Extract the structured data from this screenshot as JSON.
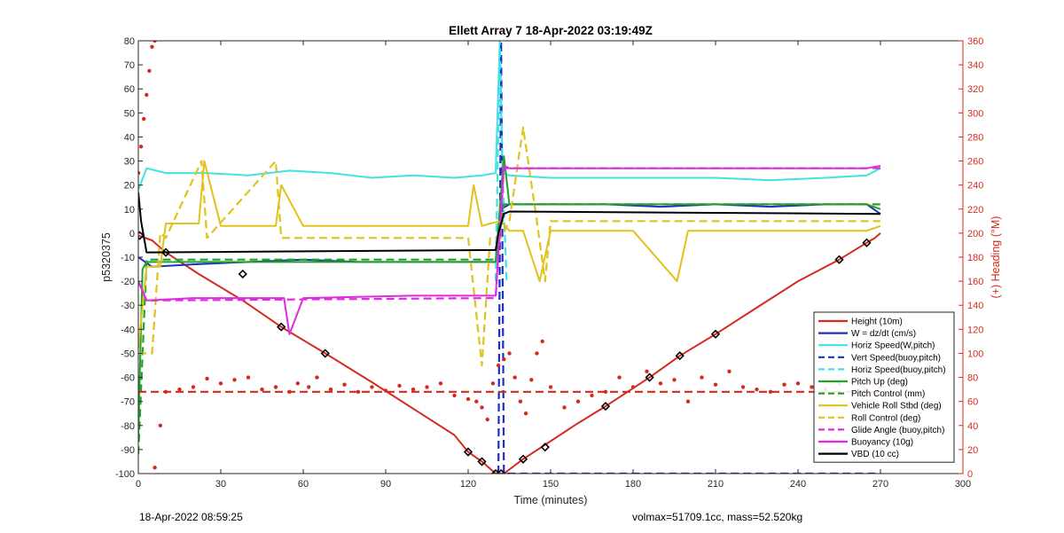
{
  "chart_data": {
    "type": "line",
    "title": "Ellett Array 7 18-Apr-2022 03:19:49Z",
    "xlabel": "Time (minutes)",
    "ylabel": "p5320375",
    "y2label": "(+) Heading (°M)",
    "xlim": [
      0,
      300
    ],
    "ylim": [
      -100,
      80
    ],
    "y2lim": [
      0,
      360
    ],
    "xticks": [
      "0",
      "30",
      "60",
      "90",
      "120",
      "150",
      "180",
      "210",
      "240",
      "270",
      "300"
    ],
    "yticks": [
      "80",
      "70",
      "60",
      "50",
      "40",
      "30",
      "20",
      "10",
      "0",
      "-10",
      "-20",
      "-30",
      "-40",
      "-50",
      "-60",
      "-70",
      "-80",
      "-90",
      "-100"
    ],
    "y2ticks": [
      "360",
      "340",
      "320",
      "300",
      "280",
      "260",
      "240",
      "220",
      "200",
      "180",
      "160",
      "140",
      "120",
      "100",
      "80",
      "60",
      "40",
      "20",
      "0"
    ],
    "grid": false,
    "legend_position": "bottom-right",
    "colors": {
      "height": "#d62a1e",
      "w": "#1f2fc2",
      "horiz": "#3ee3e3",
      "vert_buoy": "#1f2fc2",
      "horiz_buoy": "#3ee3e3",
      "pitch_up": "#22a02a",
      "pitch_ctrl": "#22a02a",
      "roll": "#e0c21a",
      "roll_ctrl": "#e0c21a",
      "glide": "#e02ae0",
      "buoyancy": "#e02ae0",
      "vbd": "#000000",
      "heading": "#d62a1e",
      "axis_right": "#d62a1e"
    },
    "series": [
      {
        "name": "Height (10m)",
        "style": "solid",
        "color": "height",
        "x": [
          0,
          5,
          10,
          22,
          38,
          52,
          68,
          85,
          100,
          115,
          120,
          125,
          130,
          131.5,
          133,
          140,
          148,
          160,
          170,
          186,
          197,
          210,
          225,
          240,
          255,
          265,
          268,
          270
        ],
        "y": [
          -1,
          -3,
          -8,
          -17,
          -28,
          -39,
          -50,
          -62,
          -73,
          -84,
          -91,
          -95,
          -100,
          -100,
          -100,
          -94,
          -88,
          -79,
          -72,
          -60,
          -51,
          -42,
          -31,
          -20,
          -11,
          -4,
          -2,
          0
        ]
      },
      {
        "name": "W = dz/dt (cm/s)",
        "style": "solid",
        "color": "w",
        "x": [
          0,
          5,
          20,
          40,
          60,
          80,
          100,
          120,
          130,
          132,
          135,
          150,
          170,
          190,
          210,
          230,
          250,
          265,
          270
        ],
        "y": [
          -10,
          -14,
          -13,
          -12,
          -11,
          -12,
          -12,
          -12,
          -12,
          10,
          12,
          12,
          12,
          11,
          12,
          11,
          12,
          12,
          8
        ]
      },
      {
        "name": "Horiz Speed(W,pitch)",
        "style": "solid",
        "color": "horiz",
        "x": [
          0,
          3,
          10,
          25,
          40,
          55,
          70,
          85,
          100,
          115,
          125,
          130,
          131.5,
          132.5,
          135,
          150,
          170,
          190,
          210,
          230,
          250,
          265,
          270
        ],
        "y": [
          18,
          27,
          25,
          25,
          24,
          26,
          25,
          23,
          24,
          23,
          24,
          25,
          80,
          25,
          24,
          23,
          23,
          23,
          23,
          22,
          23,
          24,
          27
        ]
      },
      {
        "name": "Vert Speed(buoy,pitch)",
        "style": "dash",
        "color": "vert_buoy",
        "x": [
          131,
          132,
          132.3,
          133,
          270
        ],
        "y": [
          -100,
          80,
          25,
          -100,
          -100
        ]
      },
      {
        "name": "Horiz Speed(buoy,pitch)",
        "style": "dash",
        "color": "horiz_buoy",
        "x": [
          130,
          131.5,
          132.5,
          134
        ],
        "y": [
          -20,
          80,
          25,
          -20
        ]
      },
      {
        "name": "Pitch Up (deg)",
        "style": "solid",
        "color": "pitch_up",
        "x": [
          0,
          0.5,
          1.5,
          3,
          10,
          40,
          80,
          120,
          130,
          133,
          135,
          150,
          190,
          230,
          265,
          270
        ],
        "y": [
          -85,
          -60,
          -15,
          -12,
          -12,
          -12,
          -12,
          -12,
          -12,
          32,
          12,
          12,
          12,
          12,
          12,
          10
        ]
      },
      {
        "name": "Pitch Control (mm)",
        "style": "dash",
        "color": "pitch_ctrl",
        "x": [
          0,
          3,
          130,
          133,
          270
        ],
        "y": [
          -92,
          -11,
          -11,
          12,
          12
        ]
      },
      {
        "name": "Vehicle Roll Stbd (deg)",
        "style": "solid",
        "color": "roll",
        "x": [
          0,
          3,
          8,
          10,
          22,
          24,
          30,
          50,
          52,
          60,
          120,
          122,
          125,
          128,
          132,
          135,
          140,
          146,
          150,
          170,
          180,
          196,
          200,
          210,
          265,
          270
        ],
        "y": [
          -48,
          -14,
          -14,
          4,
          4,
          30,
          3,
          3,
          20,
          3,
          3,
          20,
          3,
          4,
          5,
          1,
          1,
          -20,
          1,
          1,
          1,
          -20,
          1,
          1,
          1,
          3
        ]
      },
      {
        "name": "Roll Control (deg)",
        "style": "dash",
        "color": "roll_ctrl",
        "x": [
          0,
          5,
          8,
          10,
          23,
          25,
          50,
          52,
          55,
          120,
          125,
          128,
          132,
          135,
          140,
          145,
          148,
          150,
          170,
          265,
          270
        ],
        "y": [
          -50,
          -50,
          0,
          -2,
          30,
          -2,
          30,
          -2,
          -2,
          -2,
          -55,
          -2,
          -2,
          5,
          44,
          5,
          -20,
          5,
          5,
          5,
          5
        ]
      },
      {
        "name": "Glide Angle (buoy,pitch)",
        "style": "dash",
        "color": "glide",
        "x": [
          0,
          3,
          130,
          133,
          270
        ],
        "y": [
          -20,
          -28,
          -27,
          27,
          27
        ]
      },
      {
        "name": "Buoyancy (10g)",
        "style": "solid",
        "color": "buoyancy",
        "x": [
          0,
          3,
          20,
          40,
          53,
          55,
          60,
          100,
          130,
          133,
          135,
          170,
          210,
          250,
          265,
          270
        ],
        "y": [
          -20,
          -28,
          -27,
          -27,
          -27,
          -42,
          -27,
          -26,
          -26,
          28,
          27,
          27,
          27,
          27,
          27,
          28
        ]
      },
      {
        "name": "VBD (10 cc)",
        "style": "solid",
        "color": "vbd",
        "x": [
          0,
          1,
          3,
          130,
          131,
          133,
          135,
          270
        ],
        "y": [
          17,
          5,
          -8,
          -7,
          0,
          8,
          9,
          8
        ]
      },
      {
        "name": "",
        "style": "dots",
        "color": "heading",
        "axis": "right",
        "x": [
          0,
          1,
          2,
          3,
          4,
          5,
          6,
          6,
          8,
          10,
          15,
          20,
          25,
          30,
          35,
          40,
          45,
          50,
          55,
          58,
          62,
          65,
          70,
          75,
          80,
          85,
          90,
          95,
          100,
          105,
          110,
          115,
          120,
          123,
          125,
          127,
          129,
          131,
          133,
          135,
          137,
          139,
          141,
          143,
          145,
          147,
          150,
          155,
          160,
          165,
          170,
          175,
          180,
          185,
          190,
          195,
          200,
          205,
          210,
          215,
          220,
          225,
          230,
          235,
          240,
          245,
          250,
          255,
          260,
          265,
          270
        ],
        "y": [
          250,
          272,
          295,
          315,
          335,
          355,
          360,
          5,
          40,
          68,
          70,
          72,
          79,
          75,
          78,
          80,
          70,
          72,
          68,
          75,
          72,
          80,
          70,
          74,
          68,
          72,
          69,
          73,
          70,
          72,
          75,
          65,
          62,
          60,
          55,
          45,
          75,
          90,
          95,
          100,
          80,
          60,
          50,
          78,
          100,
          110,
          72,
          55,
          60,
          65,
          68,
          80,
          72,
          85,
          75,
          78,
          60,
          80,
          74,
          85,
          72,
          70,
          68,
          74,
          75,
          72,
          70,
          75,
          68,
          70,
          72
        ]
      },
      {
        "name": "",
        "style": "dash",
        "color": "heading",
        "axis": "right",
        "x": [
          0,
          270
        ],
        "y": [
          68,
          68
        ]
      }
    ],
    "markers": {
      "x": [
        0.5,
        10,
        38,
        52,
        68,
        120,
        125,
        130,
        132,
        140,
        148,
        170,
        186,
        197,
        210,
        255,
        265
      ],
      "y": [
        -1,
        -8,
        -17,
        -39,
        -50,
        -91,
        -95,
        -100,
        -100,
        -94,
        -89,
        -72,
        -60,
        -51,
        -42,
        -11,
        -4
      ]
    }
  },
  "footer": {
    "left": "18-Apr-2022 08:59:25",
    "right": "volmax=51709.1cc, mass=52.520kg"
  }
}
